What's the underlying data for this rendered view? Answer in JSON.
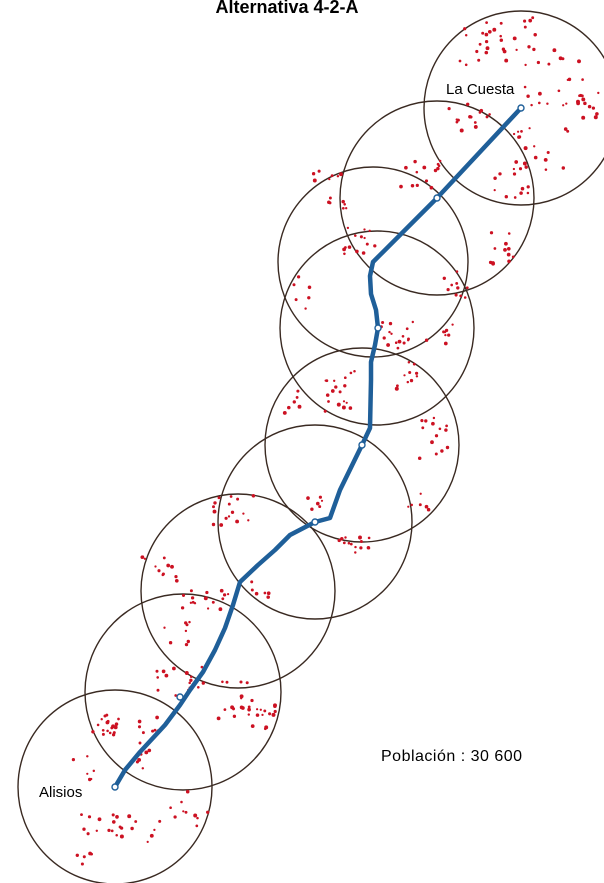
{
  "map": {
    "title": "Alternativa 4-2-A",
    "population_label": "Población : 30 600",
    "stations": {
      "north": "La Cuesta",
      "south": "Alisios"
    },
    "colors": {
      "route": "#1f5f99",
      "rings": "#3a2a22",
      "population_dots": "#cc1122"
    }
  }
}
